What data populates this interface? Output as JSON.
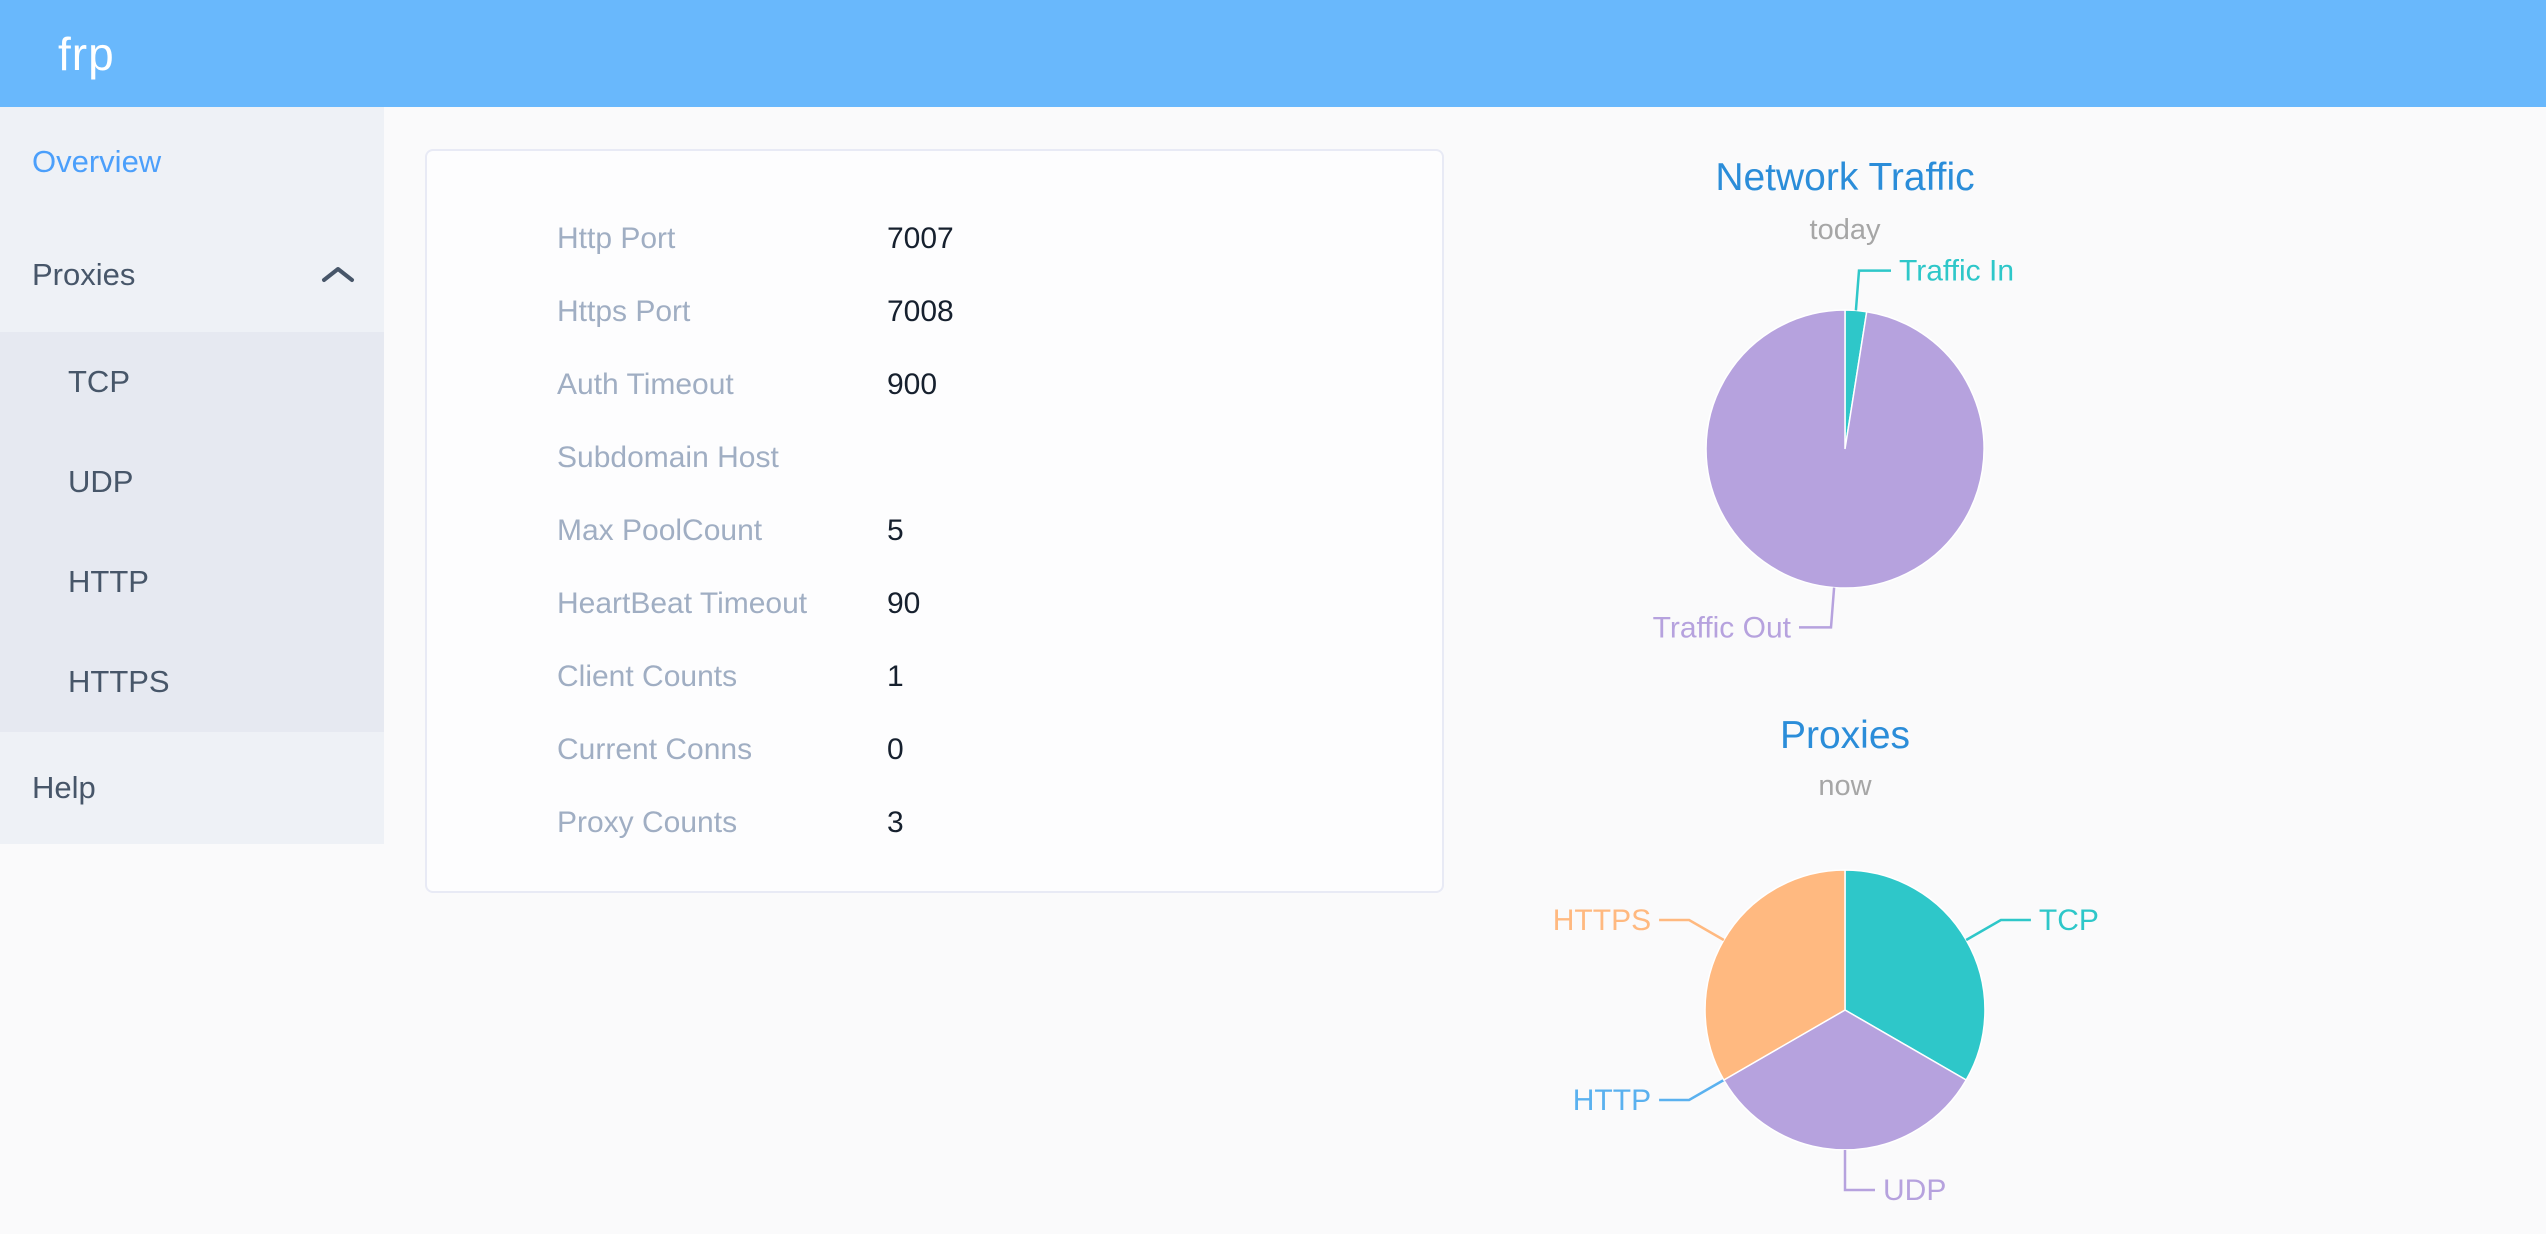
{
  "header": {
    "logo_text": "frp"
  },
  "sidebar": {
    "overview_label": "Overview",
    "proxies_label": "Proxies",
    "proxy_types": [
      "TCP",
      "UDP",
      "HTTP",
      "HTTPS"
    ],
    "help_label": "Help"
  },
  "server_info": {
    "rows": [
      {
        "label": "Http Port",
        "value": "7007"
      },
      {
        "label": "Https Port",
        "value": "7008"
      },
      {
        "label": "Auth Timeout",
        "value": "900"
      },
      {
        "label": "Subdomain Host",
        "value": ""
      },
      {
        "label": "Max PoolCount",
        "value": "5"
      },
      {
        "label": "HeartBeat Timeout",
        "value": "90"
      },
      {
        "label": "Client Counts",
        "value": "1"
      },
      {
        "label": "Current Conns",
        "value": "0"
      },
      {
        "label": "Proxy Counts",
        "value": "3"
      }
    ]
  },
  "colors": {
    "header_blue": "#69b8fc",
    "active_menu_blue": "#4b9ffb",
    "menu_text": "#475669",
    "chart_title_blue": "#2b8dd9",
    "teal": "#2ec7c9",
    "purple": "#b6a2de",
    "blue": "#5ab1ef",
    "orange": "#ffb980"
  },
  "chart_data": [
    {
      "type": "pie",
      "title": "Network Traffic",
      "subtitle": "today",
      "legend_position": "callout-labels",
      "slices": [
        {
          "label": "Traffic In",
          "percent": 2.5,
          "color": "#2ec7c9"
        },
        {
          "label": "Traffic Out",
          "percent": 97.5,
          "color": "#b6a2de"
        }
      ]
    },
    {
      "type": "pie",
      "title": "Proxies",
      "subtitle": "now",
      "legend_position": "callout-labels",
      "slices": [
        {
          "label": "TCP",
          "count": 1,
          "percent": 33.3,
          "color": "#2ec7c9"
        },
        {
          "label": "UDP",
          "count": 1,
          "percent": 33.3,
          "color": "#b6a2de"
        },
        {
          "label": "HTTP",
          "count": 0,
          "percent": 0,
          "color": "#5ab1ef"
        },
        {
          "label": "HTTPS",
          "count": 1,
          "percent": 33.3,
          "color": "#ffb980"
        }
      ]
    }
  ]
}
